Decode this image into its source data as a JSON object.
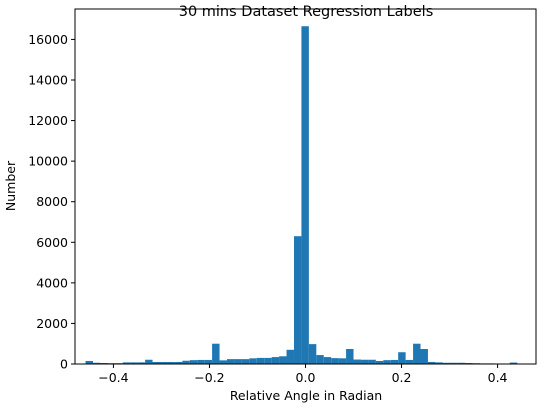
{
  "chart_data": {
    "type": "bar",
    "title": "30 mins Dataset Regression Labels",
    "xlabel": "Relative Angle in Radian",
    "ylabel": "Number",
    "xlim": [
      -0.48,
      0.48
    ],
    "ylim": [
      0,
      17500
    ],
    "xticks": [
      -0.4,
      -0.2,
      0.0,
      0.2,
      0.4
    ],
    "xtick_labels": [
      "−0.4",
      "−0.2",
      "0.0",
      "0.2",
      "0.4"
    ],
    "yticks": [
      0,
      2000,
      4000,
      6000,
      8000,
      10000,
      12000,
      14000,
      16000
    ],
    "ytick_labels": [
      "0",
      "2000",
      "4000",
      "6000",
      "8000",
      "10000",
      "12000",
      "14000",
      "16000"
    ],
    "bar_color": "#1f77b4",
    "grid": false,
    "bins": [
      {
        "x0": -0.458,
        "x1": -0.4425,
        "value": 150
      },
      {
        "x0": -0.4425,
        "x1": -0.427,
        "value": 60
      },
      {
        "x0": -0.427,
        "x1": -0.4115,
        "value": 50
      },
      {
        "x0": -0.4115,
        "x1": -0.396,
        "value": 40
      },
      {
        "x0": -0.396,
        "x1": -0.3805,
        "value": 40
      },
      {
        "x0": -0.3805,
        "x1": -0.365,
        "value": 80
      },
      {
        "x0": -0.365,
        "x1": -0.3495,
        "value": 80
      },
      {
        "x0": -0.3495,
        "x1": -0.334,
        "value": 80
      },
      {
        "x0": -0.334,
        "x1": -0.3185,
        "value": 210
      },
      {
        "x0": -0.3185,
        "x1": -0.303,
        "value": 100
      },
      {
        "x0": -0.303,
        "x1": -0.2875,
        "value": 100
      },
      {
        "x0": -0.2875,
        "x1": -0.272,
        "value": 100
      },
      {
        "x0": -0.272,
        "x1": -0.2565,
        "value": 100
      },
      {
        "x0": -0.2565,
        "x1": -0.241,
        "value": 160
      },
      {
        "x0": -0.241,
        "x1": -0.2255,
        "value": 190
      },
      {
        "x0": -0.2255,
        "x1": -0.21,
        "value": 200
      },
      {
        "x0": -0.21,
        "x1": -0.1945,
        "value": 200
      },
      {
        "x0": -0.1945,
        "x1": -0.179,
        "value": 1000
      },
      {
        "x0": -0.179,
        "x1": -0.1635,
        "value": 180
      },
      {
        "x0": -0.1635,
        "x1": -0.148,
        "value": 240
      },
      {
        "x0": -0.148,
        "x1": -0.1325,
        "value": 240
      },
      {
        "x0": -0.1325,
        "x1": -0.117,
        "value": 240
      },
      {
        "x0": -0.117,
        "x1": -0.1015,
        "value": 280
      },
      {
        "x0": -0.1015,
        "x1": -0.086,
        "value": 300
      },
      {
        "x0": -0.086,
        "x1": -0.0705,
        "value": 300
      },
      {
        "x0": -0.0705,
        "x1": -0.055,
        "value": 340
      },
      {
        "x0": -0.055,
        "x1": -0.0395,
        "value": 380
      },
      {
        "x0": -0.0395,
        "x1": -0.024,
        "value": 700
      },
      {
        "x0": -0.024,
        "x1": -0.0085,
        "value": 6300
      },
      {
        "x0": -0.0085,
        "x1": 0.007,
        "value": 16650
      },
      {
        "x0": 0.007,
        "x1": 0.0225,
        "value": 980
      },
      {
        "x0": 0.0225,
        "x1": 0.038,
        "value": 440
      },
      {
        "x0": 0.038,
        "x1": 0.0535,
        "value": 340
      },
      {
        "x0": 0.0535,
        "x1": 0.069,
        "value": 290
      },
      {
        "x0": 0.069,
        "x1": 0.0845,
        "value": 280
      },
      {
        "x0": 0.0845,
        "x1": 0.1,
        "value": 740
      },
      {
        "x0": 0.1,
        "x1": 0.1155,
        "value": 220
      },
      {
        "x0": 0.1155,
        "x1": 0.131,
        "value": 210
      },
      {
        "x0": 0.131,
        "x1": 0.1465,
        "value": 210
      },
      {
        "x0": 0.1465,
        "x1": 0.162,
        "value": 150
      },
      {
        "x0": 0.162,
        "x1": 0.1775,
        "value": 190
      },
      {
        "x0": 0.1775,
        "x1": 0.193,
        "value": 200
      },
      {
        "x0": 0.193,
        "x1": 0.2085,
        "value": 580
      },
      {
        "x0": 0.2085,
        "x1": 0.224,
        "value": 200
      },
      {
        "x0": 0.224,
        "x1": 0.2395,
        "value": 1000
      },
      {
        "x0": 0.2395,
        "x1": 0.255,
        "value": 740
      },
      {
        "x0": 0.255,
        "x1": 0.2705,
        "value": 100
      },
      {
        "x0": 0.2705,
        "x1": 0.286,
        "value": 80
      },
      {
        "x0": 0.286,
        "x1": 0.3015,
        "value": 60
      },
      {
        "x0": 0.3015,
        "x1": 0.317,
        "value": 60
      },
      {
        "x0": 0.317,
        "x1": 0.3325,
        "value": 60
      },
      {
        "x0": 0.3325,
        "x1": 0.348,
        "value": 50
      },
      {
        "x0": 0.348,
        "x1": 0.3635,
        "value": 40
      },
      {
        "x0": 0.3635,
        "x1": 0.379,
        "value": 30
      },
      {
        "x0": 0.379,
        "x1": 0.3945,
        "value": 30
      },
      {
        "x0": 0.3945,
        "x1": 0.41,
        "value": 20
      },
      {
        "x0": 0.41,
        "x1": 0.4255,
        "value": 20
      },
      {
        "x0": 0.4255,
        "x1": 0.441,
        "value": 70
      }
    ]
  }
}
